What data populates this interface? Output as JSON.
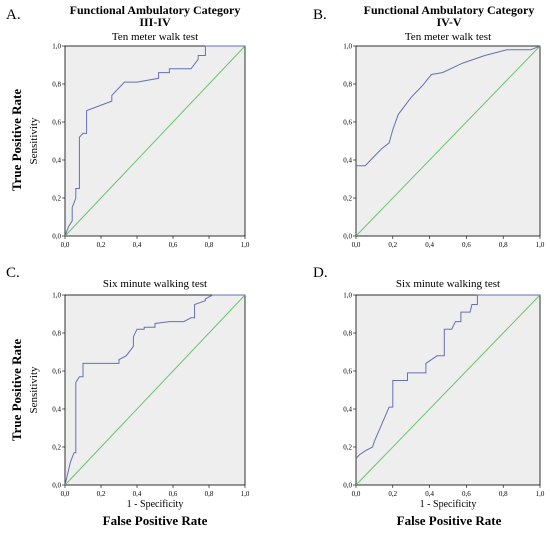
{
  "figure": {
    "y_label_outer": "True Positive Rate",
    "x_label_outer": "False Positive Rate",
    "ticks": [
      "0,0",
      "0,2",
      "0,4",
      "0,6",
      "0,8",
      "1,0"
    ],
    "colors": {
      "roc_curve": "#6670b8",
      "reference_line": "#6cc36c",
      "plot_background": "#eeeeee",
      "frame": "#000000"
    }
  },
  "chart_data": [
    {
      "type": "line",
      "panel_label": "A.",
      "header": [
        "Functional Ambulatory Category",
        "III-IV"
      ],
      "subtitle": "Ten meter walk test",
      "xlabel": "",
      "ylabel": "Sensitivity",
      "xlim": [
        0,
        1
      ],
      "ylim": [
        0,
        1
      ],
      "x": [
        0,
        0.02,
        0.04,
        0.04,
        0.06,
        0.06,
        0.08,
        0.08,
        0.1,
        0.12,
        0.12,
        0.26,
        0.26,
        0.33,
        0.37,
        0.4,
        0.52,
        0.52,
        0.58,
        0.58,
        0.7,
        0.74,
        0.74,
        0.78,
        0.78,
        1.0
      ],
      "y": [
        0,
        0.05,
        0.08,
        0.15,
        0.2,
        0.25,
        0.25,
        0.52,
        0.54,
        0.54,
        0.66,
        0.71,
        0.74,
        0.81,
        0.81,
        0.81,
        0.83,
        0.86,
        0.86,
        0.88,
        0.88,
        0.93,
        0.95,
        0.95,
        1.0,
        1.0
      ],
      "reference_line": true,
      "grid": false
    },
    {
      "type": "line",
      "panel_label": "B.",
      "header": [
        "Functional Ambulatory Category",
        "IV-V"
      ],
      "subtitle": "Ten meter walk test",
      "xlabel": "",
      "ylabel": "",
      "xlim": [
        0,
        1
      ],
      "ylim": [
        0,
        1
      ],
      "x": [
        0,
        0.05,
        0.08,
        0.12,
        0.14,
        0.18,
        0.2,
        0.23,
        0.3,
        0.36,
        0.41,
        0.47,
        0.58,
        0.7,
        0.82,
        0.95,
        1.0
      ],
      "y": [
        0.37,
        0.37,
        0.4,
        0.44,
        0.46,
        0.49,
        0.56,
        0.64,
        0.73,
        0.79,
        0.85,
        0.86,
        0.91,
        0.95,
        0.98,
        0.98,
        1.0
      ],
      "reference_line": true,
      "grid": false
    },
    {
      "type": "line",
      "panel_label": "C.",
      "header": [],
      "subtitle": "Six  minute walking test",
      "xlabel": "1 - Specificity",
      "ylabel": "Sensitivity",
      "xlim": [
        0,
        1
      ],
      "ylim": [
        0,
        1
      ],
      "x": [
        0,
        0.02,
        0.03,
        0.05,
        0.06,
        0.06,
        0.08,
        0.1,
        0.1,
        0.12,
        0.28,
        0.3,
        0.3,
        0.34,
        0.38,
        0.38,
        0.4,
        0.44,
        0.44,
        0.48,
        0.5,
        0.5,
        0.58,
        0.66,
        0.7,
        0.7,
        0.72,
        0.72,
        0.78,
        0.78,
        0.82,
        1.0
      ],
      "y": [
        0,
        0.08,
        0.12,
        0.17,
        0.17,
        0.54,
        0.57,
        0.57,
        0.64,
        0.64,
        0.64,
        0.64,
        0.66,
        0.68,
        0.73,
        0.78,
        0.82,
        0.82,
        0.83,
        0.83,
        0.83,
        0.85,
        0.86,
        0.86,
        0.88,
        0.88,
        0.88,
        0.95,
        0.97,
        0.98,
        1.0,
        1.0
      ],
      "reference_line": true,
      "grid": false
    },
    {
      "type": "line",
      "panel_label": "D.",
      "header": [],
      "subtitle": "Six  minute walking test",
      "xlabel": "1 - Specificity",
      "ylabel": "",
      "xlim": [
        0,
        1
      ],
      "ylim": [
        0,
        1
      ],
      "x": [
        0,
        0.02,
        0.05,
        0.09,
        0.1,
        0.18,
        0.2,
        0.2,
        0.28,
        0.28,
        0.32,
        0.38,
        0.38,
        0.44,
        0.48,
        0.48,
        0.52,
        0.54,
        0.57,
        0.57,
        0.6,
        0.62,
        0.62,
        0.63,
        0.66,
        0.66,
        1.0
      ],
      "y": [
        0.14,
        0.16,
        0.18,
        0.2,
        0.23,
        0.41,
        0.41,
        0.55,
        0.55,
        0.59,
        0.59,
        0.59,
        0.64,
        0.68,
        0.68,
        0.82,
        0.82,
        0.86,
        0.86,
        0.91,
        0.91,
        0.91,
        0.91,
        0.95,
        0.95,
        1.0,
        1.0
      ],
      "reference_line": true,
      "grid": false
    }
  ]
}
